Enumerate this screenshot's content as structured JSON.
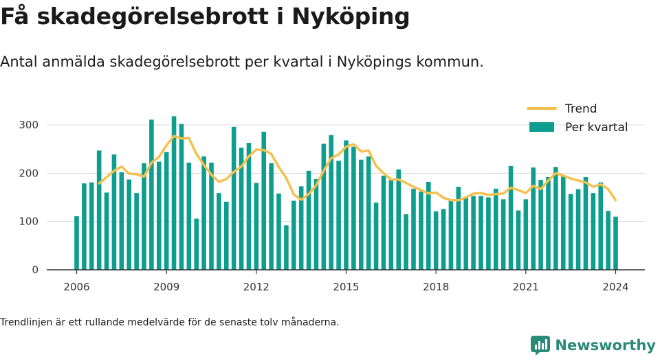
{
  "title": "Få skadegörelsebrott i Nyköping",
  "subtitle": "Antal anmälda skadegörelsebrott per kvartal i Nyköpings kommun.",
  "note": "Trendlinjen är ett rullande medelvärde för de senaste tolv månaderna.",
  "logo": {
    "text": "Newsworthy",
    "icon": "bar-chart-logo-icon"
  },
  "colors": {
    "bars": "#0d9e8f",
    "trend": "#f5c04f",
    "grid": "#d9d9d9",
    "axis": "#333333",
    "logo": "#2a8a78"
  },
  "chart_data": {
    "type": "bar",
    "x_start": 2006,
    "x_step": 0.25,
    "xticks": [
      2006,
      2009,
      2012,
      2015,
      2018,
      2021,
      2024
    ],
    "yticks": [
      0,
      100,
      200,
      300
    ],
    "ylim": [
      0,
      330
    ],
    "legend": {
      "position": "top-right",
      "entries": [
        "Trend",
        "Per kvartal"
      ]
    },
    "series": [
      {
        "name": "Per kvartal",
        "values": [
          111,
          179,
          181,
          247,
          160,
          239,
          202,
          187,
          159,
          221,
          311,
          224,
          244,
          318,
          302,
          222,
          106,
          235,
          222,
          159,
          141,
          296,
          253,
          263,
          180,
          286,
          221,
          158,
          92,
          143,
          173,
          205,
          188,
          261,
          279,
          226,
          268,
          255,
          228,
          235,
          139,
          195,
          186,
          208,
          115,
          168,
          162,
          182,
          121,
          126,
          145,
          172,
          149,
          153,
          153,
          150,
          168,
          146,
          215,
          123,
          146,
          212,
          186,
          192,
          213,
          193,
          157,
          167,
          192,
          159,
          181,
          122,
          110
        ]
      },
      {
        "name": "Trend",
        "values": [
          null,
          null,
          null,
          179,
          192,
          205,
          214,
          199,
          198,
          193,
          222,
          234,
          258,
          277,
          272,
          273,
          240,
          217,
          197,
          182,
          188,
          203,
          214,
          235,
          249,
          248,
          240,
          213,
          190,
          156,
          145,
          157,
          175,
          205,
          231,
          239,
          255,
          260,
          245,
          247,
          215,
          200,
          187,
          187,
          180,
          172,
          165,
          158,
          160,
          149,
          144,
          144,
          150,
          158,
          159,
          155,
          157,
          158,
          170,
          165,
          159,
          174,
          167,
          185,
          200,
          195,
          189,
          185,
          181,
          172,
          177,
          167,
          144
        ]
      }
    ]
  }
}
